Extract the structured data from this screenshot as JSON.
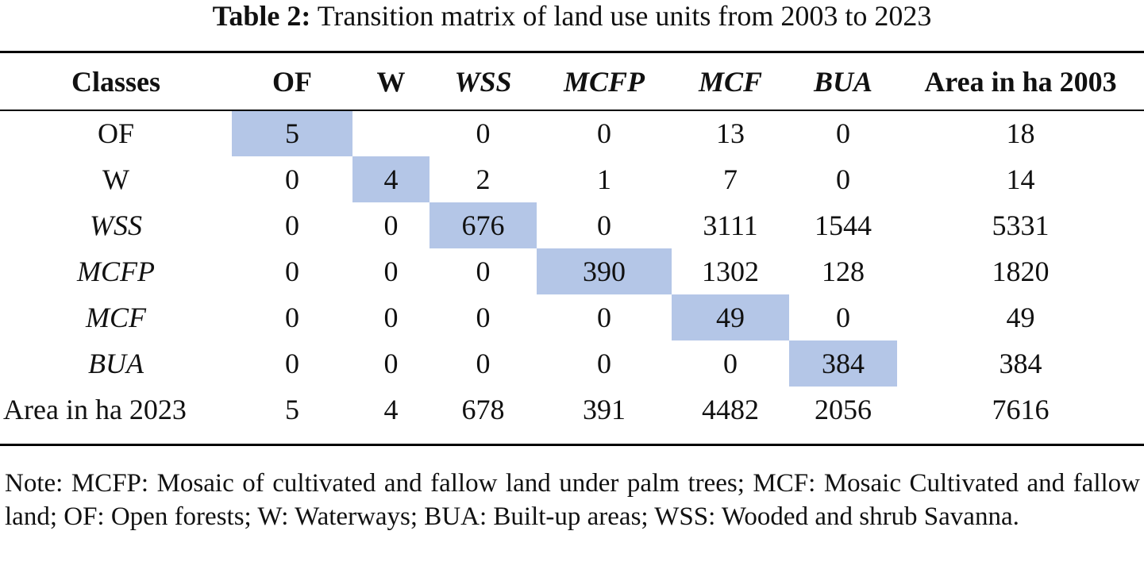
{
  "caption": {
    "label": "Table 2:",
    "text": "Transition matrix of land use units from 2003 to 2023"
  },
  "table": {
    "corner_header": "Classes",
    "columns": [
      {
        "label": "OF",
        "italic": false
      },
      {
        "label": "W",
        "italic": false
      },
      {
        "label": "WSS",
        "italic": true
      },
      {
        "label": "MCFP",
        "italic": true
      },
      {
        "label": "MCF",
        "italic": true
      },
      {
        "label": "BUA",
        "italic": true
      }
    ],
    "total_col_header": "Area in ha 2003",
    "rows": [
      {
        "label": "OF",
        "italic": false,
        "cells": [
          "5",
          "",
          "0",
          "0",
          "13",
          "0"
        ],
        "total": "18"
      },
      {
        "label": "W",
        "italic": false,
        "cells": [
          "0",
          "4",
          "2",
          "1",
          "7",
          "0"
        ],
        "total": "14"
      },
      {
        "label": "WSS",
        "italic": true,
        "cells": [
          "0",
          "0",
          "676",
          "0",
          "3111",
          "1544"
        ],
        "total": "5331"
      },
      {
        "label": "MCFP",
        "italic": true,
        "cells": [
          "0",
          "0",
          "0",
          "390",
          "1302",
          "128"
        ],
        "total": "1820"
      },
      {
        "label": "MCF",
        "italic": true,
        "cells": [
          "0",
          "0",
          "0",
          "0",
          "49",
          "0"
        ],
        "total": "49"
      },
      {
        "label": "BUA",
        "italic": true,
        "cells": [
          "0",
          "0",
          "0",
          "0",
          "0",
          "384"
        ],
        "total": "384"
      }
    ],
    "totals_row": {
      "label": "Area in ha 2023",
      "cells": [
        "5",
        "4",
        "678",
        "391",
        "4482",
        "2056"
      ],
      "total": "7616"
    },
    "diagonal_highlight_color": "#b4c6e7"
  },
  "note": "Note: MCFP: Mosaic of cultivated and fallow land under palm trees; MCF: Mosaic Cultivated and fallow land; OF: Open forests; W: Waterways; BUA: Built-up areas; WSS: Wooded and shrub Savanna."
}
